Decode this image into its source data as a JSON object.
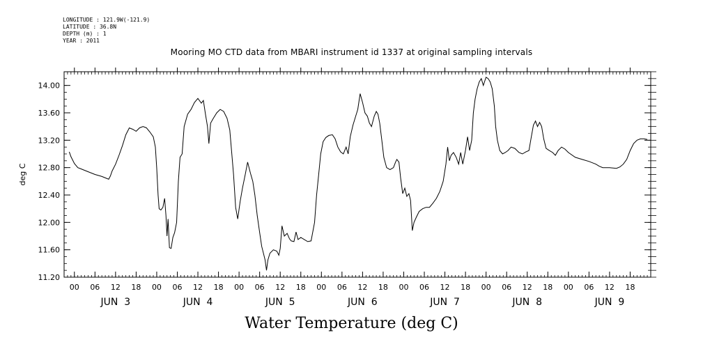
{
  "header": {
    "meta_lines": [
      "LONGITUDE : 121.9W(-121.9)",
      "LATITUDE : 36.8N",
      "DEPTH (m) : 1",
      "YEAR : 2011"
    ],
    "title": "Mooring MO CTD data from MBARI instrument id 1337 at original sampling intervals"
  },
  "footer": {
    "title": "Water Temperature (deg C)"
  },
  "chart_data": {
    "type": "line",
    "title": "Mooring MO CTD data from MBARI instrument id 1337 at original sampling intervals",
    "ylabel": "deg C",
    "xlabel": "",
    "ylim": [
      11.2,
      14.2
    ],
    "xlim": [
      -3,
      168
    ],
    "y_ticks": [
      "11.20",
      "11.60",
      "12.00",
      "12.40",
      "12.80",
      "13.20",
      "13.60",
      "14.00"
    ],
    "x_hour_labels": [
      "00",
      "06",
      "12",
      "18",
      "00",
      "06",
      "12",
      "18",
      "00",
      "06",
      "12",
      "18",
      "00",
      "06",
      "12",
      "18",
      "00",
      "06",
      "12",
      "18",
      "00",
      "06",
      "12",
      "18",
      "00",
      "06",
      "12",
      "18"
    ],
    "x_day_labels": [
      "JUN  3",
      "JUN  4",
      "JUN  5",
      "JUN  6",
      "JUN  7",
      "JUN  8",
      "JUN  9"
    ],
    "grid": false,
    "series": [
      {
        "values": [
          [
            -1.5,
            13.03
          ],
          [
            -1,
            12.96
          ],
          [
            0,
            12.86
          ],
          [
            1,
            12.8
          ],
          [
            2,
            12.78
          ],
          [
            4,
            12.74
          ],
          [
            6,
            12.7
          ],
          [
            8,
            12.67
          ],
          [
            9,
            12.65
          ],
          [
            10,
            12.63
          ],
          [
            10.5,
            12.68
          ],
          [
            11,
            12.75
          ],
          [
            12,
            12.85
          ],
          [
            13,
            12.98
          ],
          [
            14,
            13.12
          ],
          [
            15,
            13.28
          ],
          [
            16,
            13.38
          ],
          [
            17,
            13.36
          ],
          [
            18,
            13.33
          ],
          [
            19,
            13.38
          ],
          [
            20,
            13.4
          ],
          [
            21,
            13.38
          ],
          [
            22,
            13.32
          ],
          [
            23,
            13.25
          ],
          [
            23.6,
            13.1
          ],
          [
            24,
            12.8
          ],
          [
            24.4,
            12.4
          ],
          [
            24.7,
            12.2
          ],
          [
            25.2,
            12.18
          ],
          [
            25.8,
            12.22
          ],
          [
            26.3,
            12.35
          ],
          [
            26.7,
            12.1
          ],
          [
            27,
            11.8
          ],
          [
            27.3,
            12.05
          ],
          [
            27.7,
            11.63
          ],
          [
            28.2,
            11.62
          ],
          [
            28.7,
            11.78
          ],
          [
            29.2,
            11.85
          ],
          [
            29.8,
            12.0
          ],
          [
            30.3,
            12.6
          ],
          [
            30.8,
            12.95
          ],
          [
            31.4,
            13.0
          ],
          [
            32,
            13.4
          ],
          [
            33,
            13.58
          ],
          [
            34,
            13.65
          ],
          [
            35,
            13.75
          ],
          [
            36,
            13.81
          ],
          [
            37,
            13.74
          ],
          [
            37.6,
            13.78
          ],
          [
            38.2,
            13.58
          ],
          [
            38.8,
            13.4
          ],
          [
            39.2,
            13.15
          ],
          [
            39.7,
            13.45
          ],
          [
            40.5,
            13.52
          ],
          [
            41.5,
            13.6
          ],
          [
            42.5,
            13.65
          ],
          [
            43.5,
            13.62
          ],
          [
            44.5,
            13.52
          ],
          [
            45.3,
            13.35
          ],
          [
            45.8,
            13.05
          ],
          [
            46.4,
            12.7
          ],
          [
            47,
            12.22
          ],
          [
            47.6,
            12.05
          ],
          [
            48.3,
            12.3
          ],
          [
            49,
            12.5
          ],
          [
            49.8,
            12.7
          ],
          [
            50.5,
            12.88
          ],
          [
            51.3,
            12.72
          ],
          [
            52,
            12.6
          ],
          [
            52.6,
            12.4
          ],
          [
            53.3,
            12.1
          ],
          [
            54,
            11.85
          ],
          [
            54.6,
            11.65
          ],
          [
            55.1,
            11.55
          ],
          [
            55.6,
            11.45
          ],
          [
            56,
            11.3
          ],
          [
            56.4,
            11.45
          ],
          [
            57,
            11.55
          ],
          [
            58,
            11.6
          ],
          [
            59,
            11.58
          ],
          [
            59.6,
            11.52
          ],
          [
            60,
            11.62
          ],
          [
            60.5,
            11.95
          ],
          [
            61.2,
            11.8
          ],
          [
            62,
            11.84
          ],
          [
            62.7,
            11.76
          ],
          [
            63.2,
            11.73
          ],
          [
            64,
            11.72
          ],
          [
            64.6,
            11.86
          ],
          [
            65.2,
            11.75
          ],
          [
            66,
            11.78
          ],
          [
            67,
            11.75
          ],
          [
            68,
            11.72
          ],
          [
            69,
            11.73
          ],
          [
            70,
            12.0
          ],
          [
            70.6,
            12.4
          ],
          [
            71.2,
            12.7
          ],
          [
            71.8,
            13.0
          ],
          [
            72.5,
            13.18
          ],
          [
            73.3,
            13.24
          ],
          [
            74.2,
            13.27
          ],
          [
            75.2,
            13.28
          ],
          [
            76,
            13.22
          ],
          [
            76.8,
            13.1
          ],
          [
            77.6,
            13.03
          ],
          [
            78.4,
            13.0
          ],
          [
            79.2,
            13.1
          ],
          [
            79.8,
            13.0
          ],
          [
            80.4,
            13.25
          ],
          [
            81.2,
            13.42
          ],
          [
            82,
            13.55
          ],
          [
            82.6,
            13.65
          ],
          [
            83.3,
            13.88
          ],
          [
            84,
            13.75
          ],
          [
            84.7,
            13.6
          ],
          [
            85.4,
            13.55
          ],
          [
            86,
            13.45
          ],
          [
            86.6,
            13.4
          ],
          [
            87.4,
            13.55
          ],
          [
            88,
            13.62
          ],
          [
            88.5,
            13.58
          ],
          [
            89,
            13.45
          ],
          [
            89.6,
            13.2
          ],
          [
            90.2,
            12.95
          ],
          [
            91,
            12.8
          ],
          [
            92,
            12.77
          ],
          [
            93,
            12.8
          ],
          [
            93.6,
            12.88
          ],
          [
            94,
            12.92
          ],
          [
            94.6,
            12.88
          ],
          [
            95.1,
            12.65
          ],
          [
            95.7,
            12.42
          ],
          [
            96.3,
            12.5
          ],
          [
            96.9,
            12.38
          ],
          [
            97.5,
            12.42
          ],
          [
            98,
            12.32
          ],
          [
            98.5,
            11.88
          ],
          [
            99,
            12.0
          ],
          [
            99.7,
            12.08
          ],
          [
            100.5,
            12.16
          ],
          [
            101.5,
            12.2
          ],
          [
            102.5,
            12.22
          ],
          [
            103.5,
            12.22
          ],
          [
            104.5,
            12.28
          ],
          [
            105.5,
            12.35
          ],
          [
            106.5,
            12.45
          ],
          [
            107.5,
            12.6
          ],
          [
            108.3,
            12.85
          ],
          [
            108.8,
            13.1
          ],
          [
            109.3,
            12.9
          ],
          [
            109.8,
            12.98
          ],
          [
            110.5,
            13.02
          ],
          [
            111.3,
            12.95
          ],
          [
            112,
            12.85
          ],
          [
            112.6,
            13.02
          ],
          [
            113.2,
            12.85
          ],
          [
            114,
            13.05
          ],
          [
            114.6,
            13.25
          ],
          [
            115.2,
            13.05
          ],
          [
            115.8,
            13.2
          ],
          [
            116.3,
            13.6
          ],
          [
            116.8,
            13.8
          ],
          [
            117.4,
            13.95
          ],
          [
            118,
            14.05
          ],
          [
            118.6,
            14.1
          ],
          [
            119.2,
            14.0
          ],
          [
            120,
            14.12
          ],
          [
            120.6,
            14.1
          ],
          [
            121.2,
            14.05
          ],
          [
            121.8,
            13.95
          ],
          [
            122.4,
            13.7
          ],
          [
            122.8,
            13.4
          ],
          [
            123.3,
            13.2
          ],
          [
            124,
            13.05
          ],
          [
            124.8,
            13.0
          ],
          [
            125.6,
            13.02
          ],
          [
            126.4,
            13.05
          ],
          [
            127.3,
            13.1
          ],
          [
            128.4,
            13.08
          ],
          [
            129.6,
            13.02
          ],
          [
            130.6,
            13.0
          ],
          [
            131.6,
            13.03
          ],
          [
            132.5,
            13.05
          ],
          [
            133.2,
            13.25
          ],
          [
            133.8,
            13.42
          ],
          [
            134.4,
            13.48
          ],
          [
            135,
            13.4
          ],
          [
            135.6,
            13.46
          ],
          [
            136.2,
            13.4
          ],
          [
            136.8,
            13.22
          ],
          [
            137.5,
            13.08
          ],
          [
            138.4,
            13.05
          ],
          [
            139.4,
            13.02
          ],
          [
            140.2,
            12.98
          ],
          [
            141,
            13.05
          ],
          [
            142,
            13.1
          ],
          [
            143,
            13.07
          ],
          [
            144,
            13.02
          ],
          [
            146,
            12.95
          ],
          [
            148,
            12.92
          ],
          [
            150,
            12.89
          ],
          [
            152,
            12.85
          ],
          [
            153,
            12.82
          ],
          [
            154,
            12.8
          ],
          [
            156,
            12.8
          ],
          [
            158,
            12.79
          ],
          [
            159,
            12.81
          ],
          [
            160,
            12.85
          ],
          [
            161,
            12.92
          ],
          [
            162,
            13.05
          ],
          [
            163,
            13.15
          ],
          [
            164,
            13.2
          ],
          [
            165,
            13.22
          ],
          [
            166,
            13.22
          ],
          [
            167,
            13.21
          ]
        ]
      }
    ]
  }
}
